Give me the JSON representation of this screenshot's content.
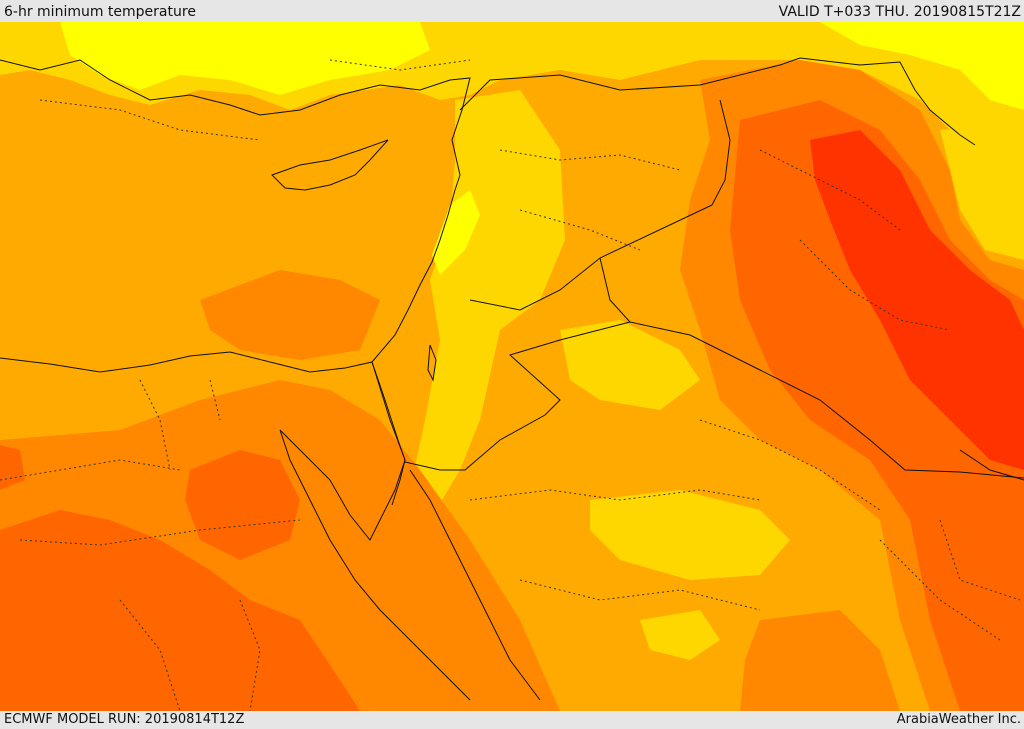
{
  "header": {
    "title": "6-hr minimum temperature",
    "valid": "VALID T+033 THU. 20190815T21Z"
  },
  "footer": {
    "model_run": "ECMWF MODEL RUN: 20190814T12Z",
    "credit": "ArabiaWeather Inc."
  },
  "palette": {
    "yellow": "#ffff00",
    "gold": "#ffd700",
    "light_orange": "#ffaa00",
    "orange": "#ff8800",
    "dark_orange": "#ff6600",
    "red_orange": "#ff3300"
  }
}
